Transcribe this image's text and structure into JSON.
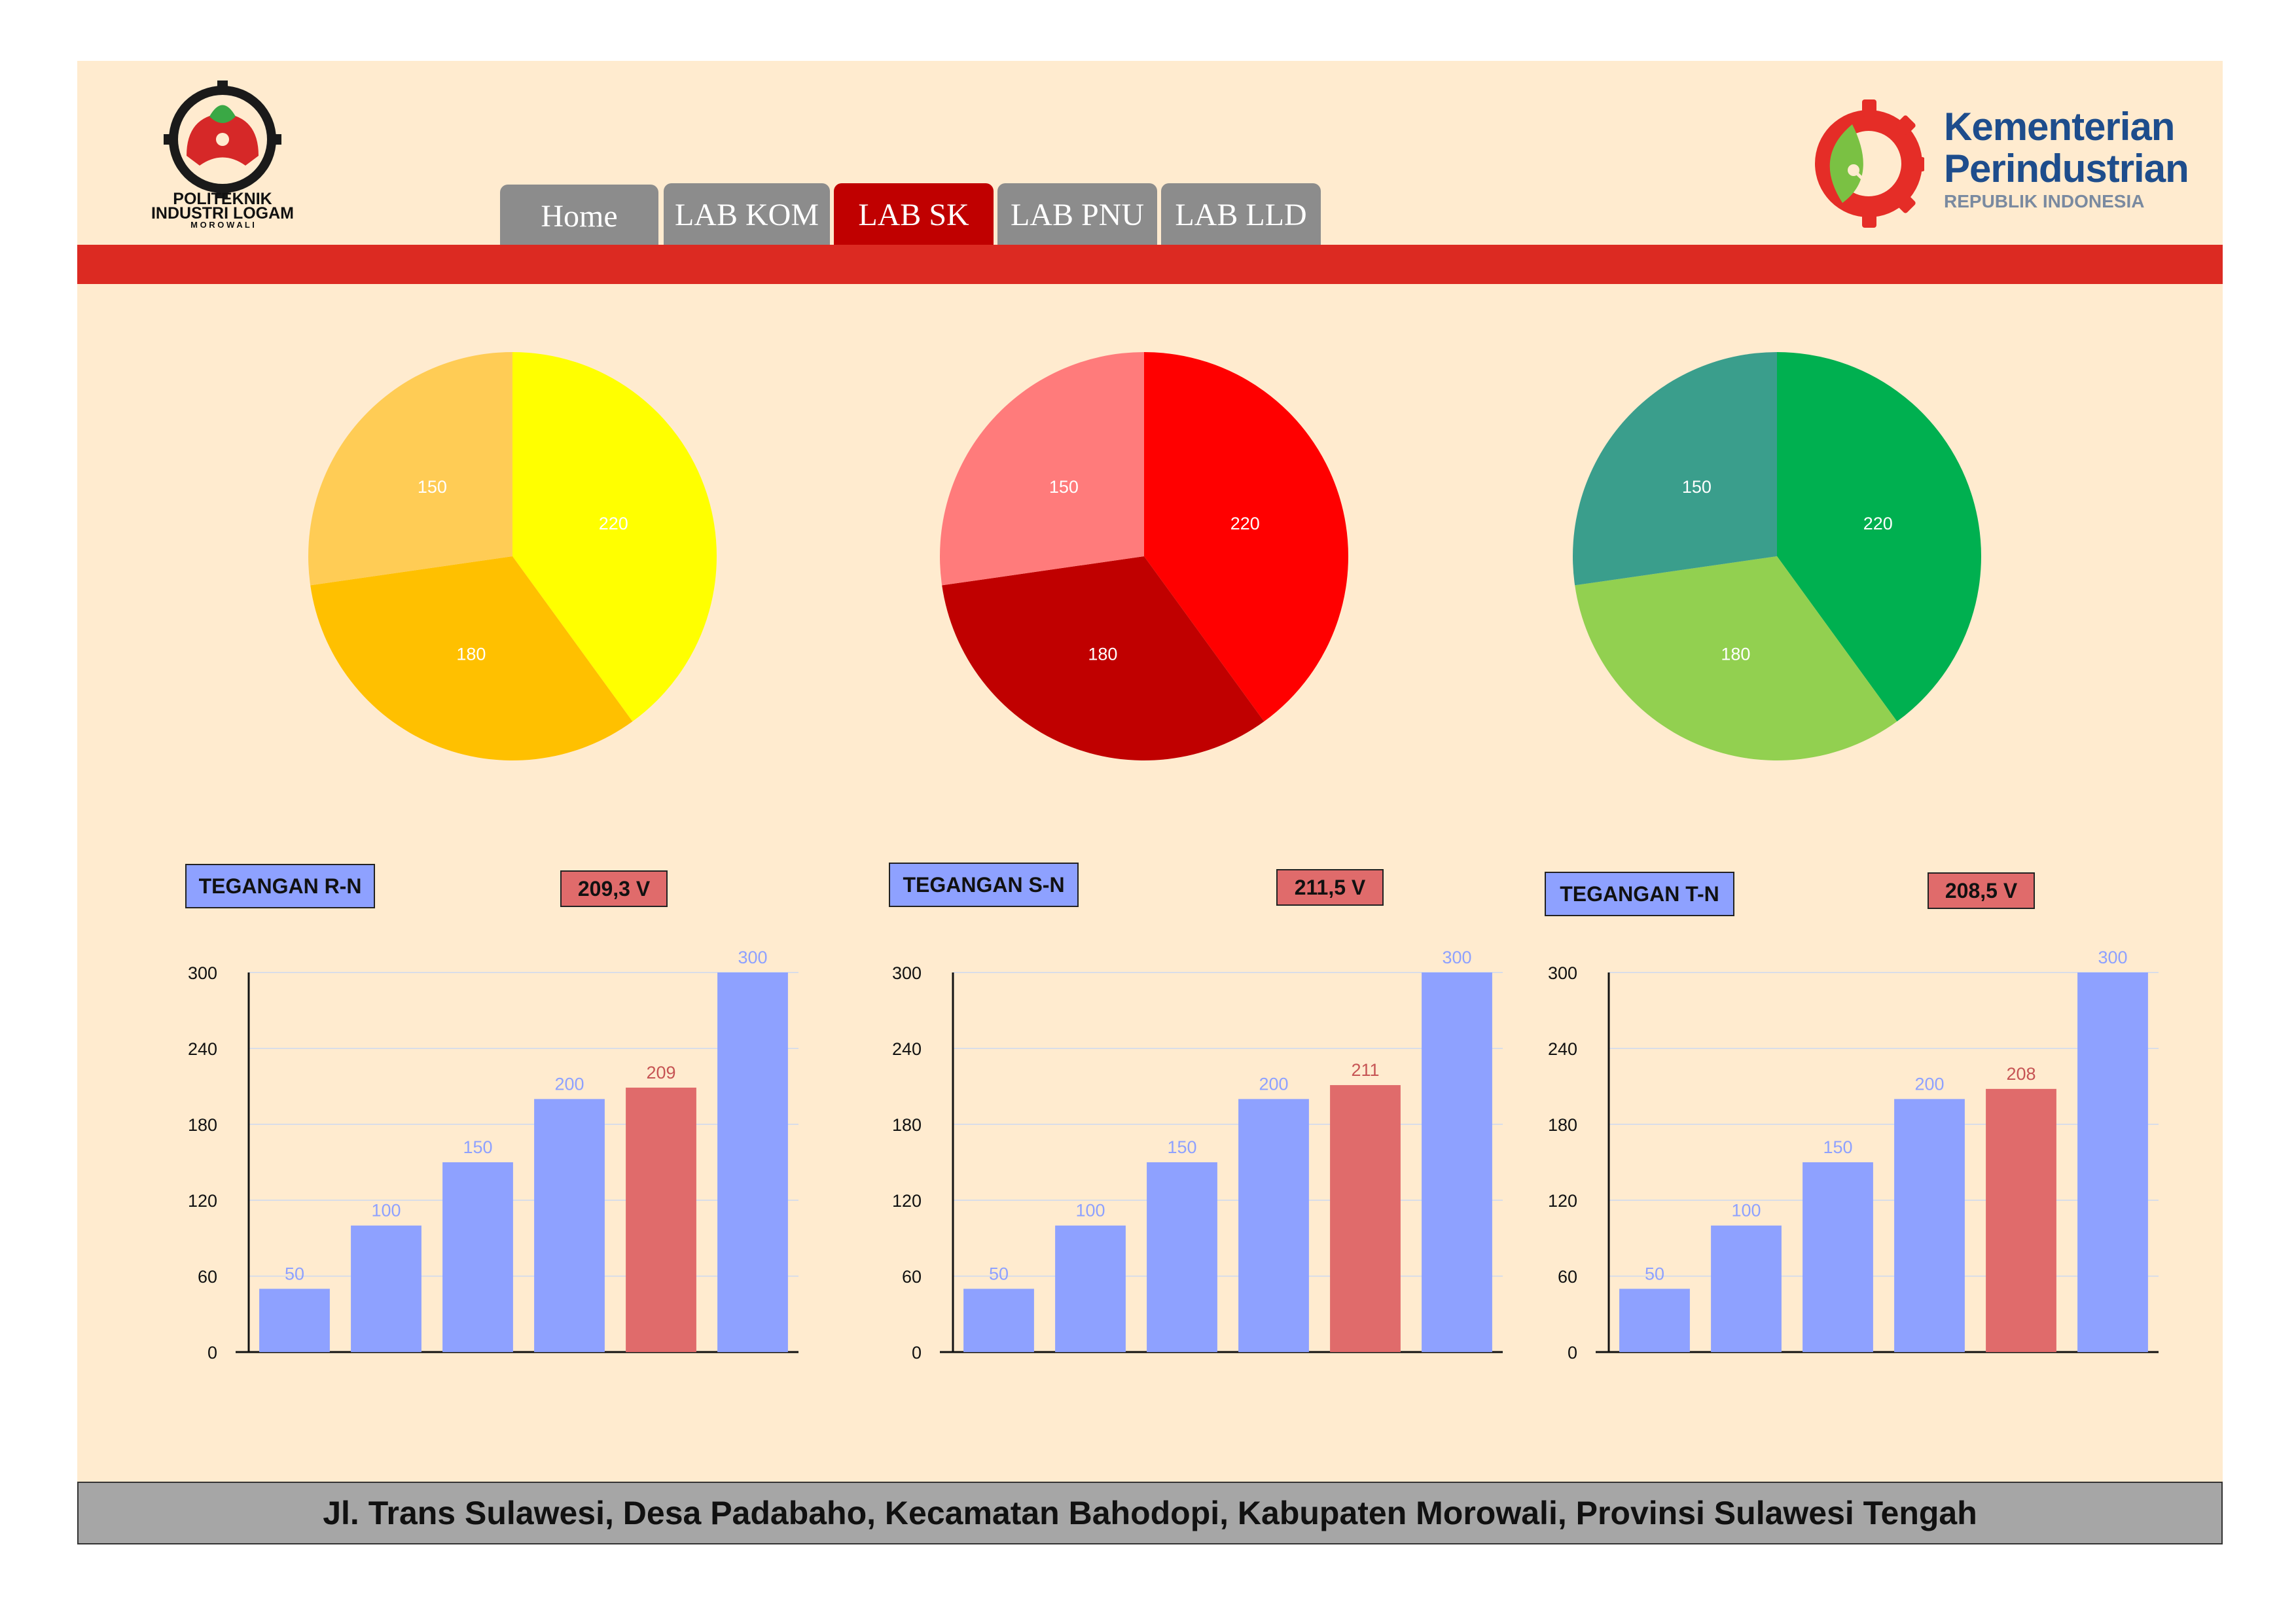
{
  "header": {
    "logo_left": {
      "line1": "POLITEKNIK",
      "line2": "INDUSTRI LOGAM",
      "line3": "M O R O W A L I"
    },
    "logo_right": {
      "line1": "Kementerian",
      "line2": "Perindustrian",
      "line3": "REPUBLIK INDONESIA"
    },
    "tabs": [
      {
        "label": "Home",
        "active": false
      },
      {
        "label": "LAB KOM",
        "active": false
      },
      {
        "label": "LAB SK",
        "active": true
      },
      {
        "label": "LAB PNU",
        "active": false
      },
      {
        "label": "LAB LLD",
        "active": false
      }
    ]
  },
  "colors": {
    "background": "#ffebcf",
    "band": "#dc2a22",
    "tab_inactive": "#8c8c8c",
    "tab_active": "#c00000",
    "bar": "#8ea1ff",
    "bar_highlight": "#e06b6b",
    "pie1": [
      "#ffff00",
      "#ffc000",
      "#ffcc55"
    ],
    "pie2": [
      "#ff0000",
      "#c00000",
      "#ff7b7b"
    ],
    "pie3": [
      "#00b050",
      "#92d050",
      "#3a9e8c"
    ]
  },
  "panels": [
    {
      "label": "TEGANGAN R-N",
      "value": "209,3 V"
    },
    {
      "label": "TEGANGAN S-N",
      "value": "211,5 V"
    },
    {
      "label": "TEGANGAN T-N",
      "value": "208,5 V"
    }
  ],
  "chart_data": [
    {
      "type": "pie",
      "values": [
        220,
        180,
        150
      ],
      "labels": [
        "220",
        "180",
        "150"
      ],
      "colors": [
        "#ffff00",
        "#ffc000",
        "#ffcc55"
      ]
    },
    {
      "type": "pie",
      "values": [
        220,
        180,
        150
      ],
      "labels": [
        "220",
        "180",
        "150"
      ],
      "colors": [
        "#ff0000",
        "#c00000",
        "#ff7b7b"
      ]
    },
    {
      "type": "pie",
      "values": [
        220,
        180,
        150
      ],
      "labels": [
        "220",
        "180",
        "150"
      ],
      "colors": [
        "#00b050",
        "#92d050",
        "#3a9e8c"
      ]
    },
    {
      "type": "bar",
      "values": [
        50,
        100,
        150,
        200,
        209,
        300
      ],
      "highlight_index": 4,
      "ylim": [
        0,
        300
      ],
      "yticks": [
        0,
        60,
        120,
        180,
        240,
        300
      ],
      "grid": true
    },
    {
      "type": "bar",
      "values": [
        50,
        100,
        150,
        200,
        211,
        300
      ],
      "highlight_index": 4,
      "ylim": [
        0,
        300
      ],
      "yticks": [
        0,
        60,
        120,
        180,
        240,
        300
      ],
      "grid": true
    },
    {
      "type": "bar",
      "values": [
        50,
        100,
        150,
        200,
        208,
        300
      ],
      "highlight_index": 4,
      "ylim": [
        0,
        300
      ],
      "yticks": [
        0,
        60,
        120,
        180,
        240,
        300
      ],
      "grid": true
    }
  ],
  "footer": {
    "address": "Jl. Trans Sulawesi, Desa Padabaho, Kecamatan Bahodopi, Kabupaten Morowali, Provinsi Sulawesi Tengah"
  }
}
